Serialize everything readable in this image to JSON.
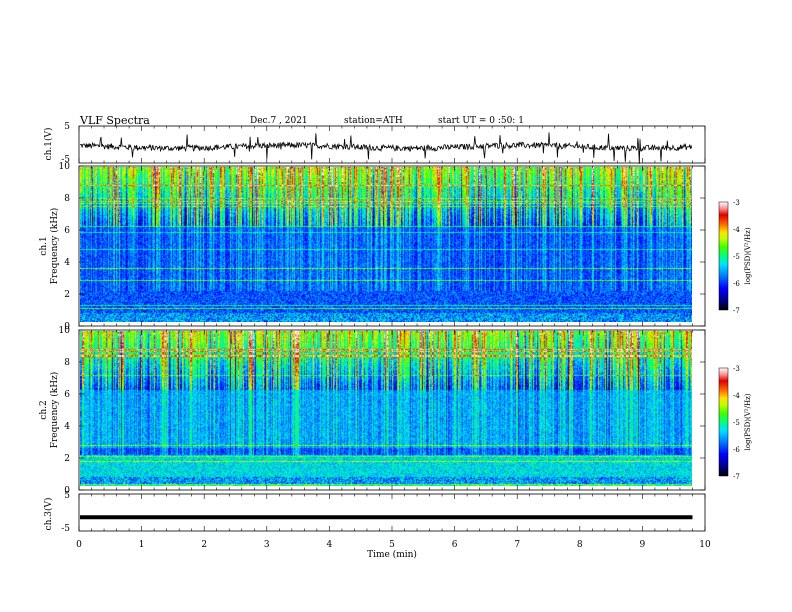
{
  "header": {
    "title": "VLF Spectra",
    "date": "Dec.7 , 2021",
    "station": "station=ATH",
    "start_ut": "start UT = 0 :50: 1"
  },
  "colors": {
    "spectrum_scale": [
      "#000060",
      "#0000c8",
      "#0060ff",
      "#00c8ff",
      "#20e8a0",
      "#40ff40",
      "#c8ff00",
      "#ffd000",
      "#ff6000",
      "#e00000",
      "#ffffff"
    ]
  },
  "chart_data": [
    {
      "type": "line",
      "ylabel": "ch.1(V)",
      "ylim": [
        -5,
        5
      ],
      "yticks": [
        "5",
        "-5"
      ],
      "x_range_min": [
        0,
        9.8
      ],
      "description_level": "noisy trace around -0.5 V with spikes"
    },
    {
      "type": "heatmap",
      "ylabel_line1": "ch.1",
      "ylabel_line2": "Frequency (kHz)",
      "ylim": [
        0,
        10
      ],
      "yticks": [
        "10",
        "8",
        "6",
        "4",
        "2",
        "0"
      ],
      "colorbar": {
        "label": "log(PSD)(V²/Hz)",
        "range": [
          -7,
          -3
        ],
        "ticks": [
          "-3",
          "-4",
          "-5",
          "-6",
          "-7"
        ]
      }
    },
    {
      "type": "heatmap",
      "ylabel_line1": "ch.2",
      "ylabel_line2": "Frequency (kHz)",
      "ylim": [
        0,
        10
      ],
      "yticks": [
        "10",
        "8",
        "6",
        "4",
        "2",
        "0"
      ],
      "colorbar": {
        "label": "log(PSD)(V²/Hz)",
        "range": [
          -7,
          -3
        ],
        "ticks": [
          "-3",
          "-4",
          "-5",
          "-6",
          "-7"
        ]
      }
    },
    {
      "type": "line",
      "ylabel": "ch.3(V)",
      "ylim": [
        -5,
        5
      ],
      "yticks": [
        "5",
        "-5"
      ],
      "x_range_min": [
        0,
        9.8
      ],
      "level": -1.3
    }
  ],
  "x_axis": {
    "label": "Time (min)",
    "xlim": [
      0,
      10
    ],
    "ticks": [
      "0",
      "1",
      "2",
      "3",
      "4",
      "5",
      "6",
      "7",
      "8",
      "9",
      "10"
    ]
  }
}
